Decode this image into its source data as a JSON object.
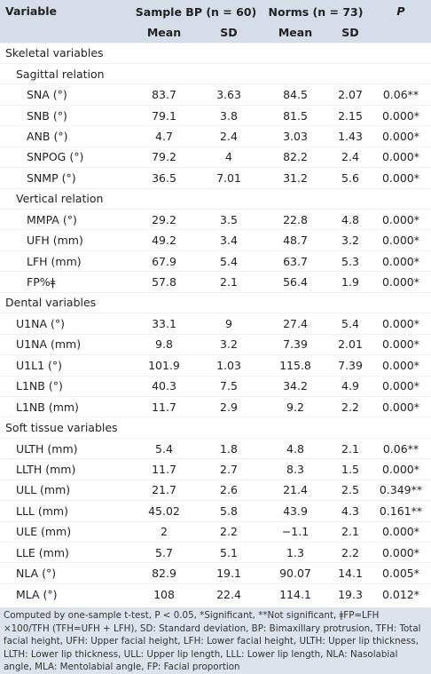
{
  "table": {
    "header_row1": [
      "Variable",
      "Sample BP (n = 60)",
      "Norms (n = 73)",
      "P"
    ],
    "header_row2": [
      "Mean",
      "SD",
      "Mean",
      "SD"
    ],
    "sections": [
      {
        "title": "Skeletal variables",
        "groups": [
          {
            "title": "Sagittal relation",
            "rows": [
              [
                "SNA (°)",
                "83.7",
                "3.63",
                "84.5",
                "2.07",
                "0.06**"
              ],
              [
                "SNB (°)",
                "79.1",
                "3.8",
                "81.5",
                "2.15",
                "0.000*"
              ],
              [
                "ANB (°)",
                "4.7",
                "2.4",
                "3.03",
                "1.43",
                "0.000*"
              ],
              [
                "SNPOG (°)",
                "79.2",
                "4",
                "82.2",
                "2.4",
                "0.000*"
              ],
              [
                "SNMP (°)",
                "36.5",
                "7.01",
                "31.2",
                "5.6",
                "0.000*"
              ]
            ]
          },
          {
            "title": "Vertical relation",
            "rows": [
              [
                "MMPA (°)",
                "29.2",
                "3.5",
                "22.8",
                "4.8",
                "0.000*"
              ],
              [
                "UFH (mm)",
                "49.2",
                "3.4",
                "48.7",
                "3.2",
                "0.000*"
              ],
              [
                "LFH (mm)",
                "67.9",
                "5.4",
                "63.7",
                "5.3",
                "0.000*"
              ],
              [
                "FP%ǂ",
                "57.8",
                "2.1",
                "56.4",
                "1.9",
                "0.000*"
              ]
            ]
          }
        ]
      },
      {
        "title": "Dental variables",
        "rows": [
          [
            "U1NA (°)",
            "33.1",
            "9",
            "27.4",
            "5.4",
            "0.000*"
          ],
          [
            "U1NA (mm)",
            "9.8",
            "3.2",
            "7.39",
            "2.01",
            "0.000*"
          ],
          [
            "U1L1 (°)",
            "101.9",
            "1.03",
            "115.8",
            "7.39",
            "0.000*"
          ],
          [
            "L1NB (°)",
            "40.3",
            "7.5",
            "34.2",
            "4.9",
            "0.000*"
          ],
          [
            "L1NB (mm)",
            "11.7",
            "2.9",
            "9.2",
            "2.2",
            "0.000*"
          ]
        ]
      },
      {
        "title": "Soft tissue variables",
        "rows": [
          [
            "ULTH (mm)",
            "5.4",
            "1.8",
            "4.8",
            "2.1",
            "0.06**"
          ],
          [
            "LLTH (mm)",
            "11.7",
            "2.7",
            "8.3",
            "1.5",
            "0.000*"
          ],
          [
            "ULL (mm)",
            "21.7",
            "2.6",
            "21.4",
            "2.5",
            "0.349**"
          ],
          [
            "LLL (mm)",
            "45.02",
            "5.8",
            "43.9",
            "4.3",
            "0.161**"
          ],
          [
            "ULE (mm)",
            "2",
            "2.2",
            "−1.1",
            "2.1",
            "0.000*"
          ],
          [
            "LLE (mm)",
            "5.7",
            "5.1",
            "1.3",
            "2.2",
            "0.000*"
          ],
          [
            "NLA (°)",
            "82.9",
            "19.1",
            "90.07",
            "14.1",
            "0.005*"
          ],
          [
            "MLA (°)",
            "108",
            "22.4",
            "114.1",
            "19.3",
            "0.012*"
          ]
        ]
      }
    ]
  },
  "footnote": "Computed by one-sample t-test, P < 0.05, *Significant, **Not significant, ǂFP=LFH ×100/TFH (TFH=UFH + LFH), SD: Standard deviation, BP: Bimaxillary protrusion, TFH: Total facial height, UFH: Upper facial height, LFH: Lower facial height, ULTH: Upper lip thickness, LLTH: Lower lip thickness, ULL: Upper lip length, LLL: Lower lip length, NLA: Nasolabial angle, MLA: Mentolabial angle, FP: Facial proportion"
}
